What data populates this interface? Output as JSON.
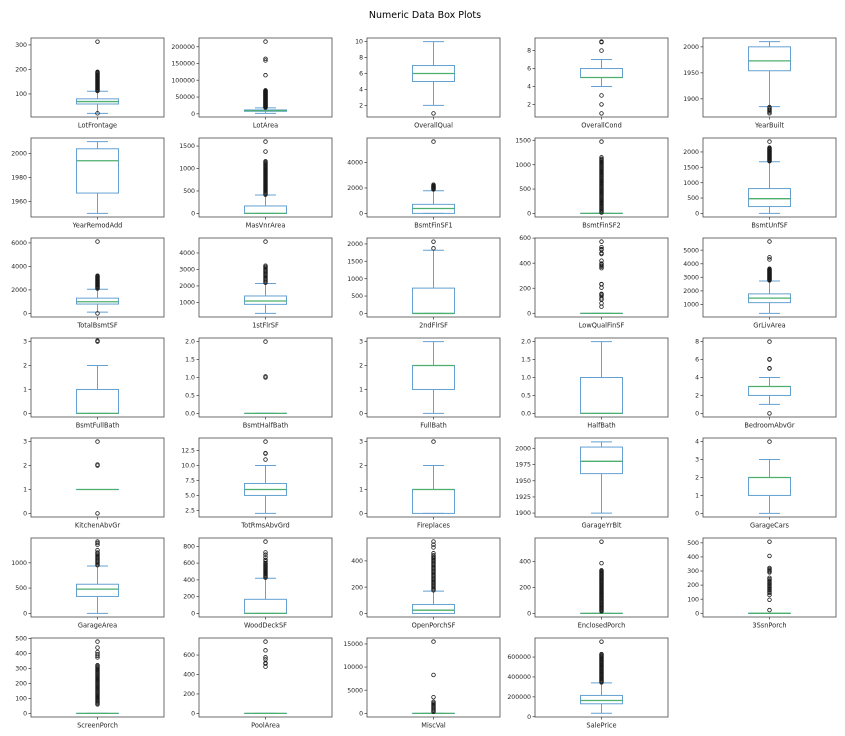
{
  "title": "Numeric Data Box Plots",
  "colors": {
    "background": "#ffffff",
    "box": "#64a1d2",
    "median": "#4caf6e",
    "outlier": "#1a1a1a",
    "spine": "#4a4a4a",
    "text": "#262626"
  },
  "chart_data": {
    "type": "box",
    "title": "Numeric Data Box Plots",
    "layout": {
      "rows": 7,
      "cols": 5,
      "legend": "none",
      "grid": false
    },
    "plots": [
      {
        "label": "LotFrontage",
        "ylim": [
          6,
          328
        ],
        "yticks": [
          "100",
          "200",
          "300"
        ],
        "box": {
          "q1": 59,
          "median": 69,
          "q3": 80,
          "whisker_low": 21,
          "whisker_high": 111
        },
        "outlier_clusters": [
          {
            "min": 112,
            "max": 190,
            "n": 26
          }
        ],
        "outliers": [
          313,
          21
        ]
      },
      {
        "label": "LotArea",
        "ylim": [
          -9500,
          226000
        ],
        "yticks": [
          "0",
          "50000",
          "100000",
          "150000",
          "200000"
        ],
        "box": {
          "q1": 7554,
          "median": 9478,
          "q3": 11602,
          "whisker_low": 1300,
          "whisker_high": 17700
        },
        "outlier_clusters": [
          {
            "min": 18500,
            "max": 70000,
            "n": 40
          }
        ],
        "outliers": [
          115000,
          159000,
          164000,
          215245
        ]
      },
      {
        "label": "OverallQual",
        "ylim": [
          0.55,
          10.45
        ],
        "yticks": [
          "2",
          "4",
          "6",
          "8",
          "10"
        ],
        "box": {
          "q1": 5,
          "median": 6,
          "q3": 7,
          "whisker_low": 2,
          "whisker_high": 10
        },
        "outlier_clusters": [],
        "outliers": [
          1
        ]
      },
      {
        "label": "OverallCond",
        "ylim": [
          0.6,
          9.4
        ],
        "yticks": [
          "2",
          "4",
          "6",
          "8"
        ],
        "box": {
          "q1": 5,
          "median": 5,
          "q3": 6,
          "whisker_low": 4,
          "whisker_high": 7
        },
        "outlier_clusters": [],
        "outliers": [
          9,
          8.93,
          8,
          3,
          2,
          1
        ]
      },
      {
        "label": "YearBuilt",
        "ylim": [
          1865,
          2017
        ],
        "yticks": [
          "1900",
          "1950",
          "2000"
        ],
        "box": {
          "q1": 1954,
          "median": 1973,
          "q3": 2000,
          "whisker_low": 1885,
          "whisker_high": 2010
        },
        "outlier_clusters": [
          {
            "min": 1872,
            "max": 1884,
            "n": 6
          }
        ],
        "outliers": []
      },
      {
        "label": "YearRemodAdd",
        "ylim": [
          1947,
          2013
        ],
        "yticks": [
          "1960",
          "1980",
          "2000"
        ],
        "box": {
          "q1": 1967,
          "median": 1994,
          "q3": 2004,
          "whisker_low": 1950,
          "whisker_high": 2010
        },
        "outlier_clusters": [],
        "outliers": []
      },
      {
        "label": "MasVnrArea",
        "ylim": [
          -80,
          1680
        ],
        "yticks": [
          "0",
          "500",
          "1000",
          "1500"
        ],
        "box": {
          "q1": 0,
          "median": 0,
          "q3": 166,
          "whisker_low": 0,
          "whisker_high": 410
        },
        "outlier_clusters": [
          {
            "min": 418,
            "max": 1160,
            "n": 34
          }
        ],
        "outliers": [
          1378,
          1600
        ]
      },
      {
        "label": "BsmtFinSF1",
        "ylim": [
          -282,
          5926
        ],
        "yticks": [
          "0",
          "2000",
          "4000"
        ],
        "box": {
          "q1": 0,
          "median": 384,
          "q3": 712,
          "whisker_low": 0,
          "whisker_high": 1780
        },
        "outlier_clusters": [
          {
            "min": 1880,
            "max": 2188,
            "n": 8
          }
        ],
        "outliers": [
          2260,
          5644
        ]
      },
      {
        "label": "BsmtFinSF2",
        "ylim": [
          -74,
          1548
        ],
        "yticks": [
          "0",
          "500",
          "1000",
          "1500"
        ],
        "box": {
          "q1": 0,
          "median": 0,
          "q3": 0,
          "whisker_low": 0,
          "whisker_high": 0
        },
        "outlier_clusters": [
          {
            "min": 18,
            "max": 1120,
            "n": 52
          }
        ],
        "outliers": [
          1150,
          1474
        ]
      },
      {
        "label": "BsmtUnfSF",
        "ylim": [
          -117,
          2453
        ],
        "yticks": [
          "0",
          "500",
          "1000",
          "1500",
          "2000"
        ],
        "box": {
          "q1": 223,
          "median": 478,
          "q3": 808,
          "whisker_low": 0,
          "whisker_high": 1680
        },
        "outlier_clusters": [
          {
            "min": 1700,
            "max": 2140,
            "n": 22
          }
        ],
        "outliers": [
          2336
        ]
      },
      {
        "label": "TotalBsmtSF",
        "ylim": [
          -305,
          6415
        ],
        "yticks": [
          "0",
          "2000",
          "4000",
          "6000"
        ],
        "box": {
          "q1": 796,
          "median": 992,
          "q3": 1298,
          "whisker_low": 105,
          "whisker_high": 2052
        },
        "outlier_clusters": [
          {
            "min": 2110,
            "max": 3206,
            "n": 18
          }
        ],
        "outliers": [
          6110,
          0
        ]
      },
      {
        "label": "1stFlrSF",
        "ylim": [
          115,
          4910
        ],
        "yticks": [
          "1000",
          "2000",
          "3000",
          "4000"
        ],
        "box": {
          "q1": 882,
          "median": 1087,
          "q3": 1391,
          "whisker_low": 334,
          "whisker_high": 2150
        },
        "outlier_clusters": [
          {
            "min": 2200,
            "max": 3228,
            "n": 16
          }
        ],
        "outliers": [
          4692
        ]
      },
      {
        "label": "2ndFlrSF",
        "ylim": [
          -103,
          2170
        ],
        "yticks": [
          "0",
          "500",
          "1000",
          "1500",
          "2000"
        ],
        "box": {
          "q1": 0,
          "median": 0,
          "q3": 728,
          "whisker_low": 0,
          "whisker_high": 1818
        },
        "outlier_clusters": [],
        "outliers": [
          1872,
          2065
        ]
      },
      {
        "label": "LowQualFinSF",
        "ylim": [
          -29,
          601
        ],
        "yticks": [
          "0",
          "200",
          "400",
          "600"
        ],
        "box": {
          "q1": 0,
          "median": 0,
          "q3": 0,
          "whisker_low": 0,
          "whisker_high": 0
        },
        "outlier_clusters": [],
        "outliers": [
          53,
          80,
          110,
          120,
          140,
          150,
          156,
          205,
          232,
          234,
          360,
          371,
          380,
          390,
          397,
          420,
          473,
          481,
          508,
          513,
          528,
          572
        ]
      },
      {
        "label": "GrLivArea",
        "ylim": [
          70,
          5900
        ],
        "yticks": [
          "1000",
          "2000",
          "3000",
          "4000",
          "5000"
        ],
        "box": {
          "q1": 1130,
          "median": 1464,
          "q3": 1777,
          "whisker_low": 334,
          "whisker_high": 2730
        },
        "outlier_clusters": [
          {
            "min": 2770,
            "max": 3630,
            "n": 22
          }
        ],
        "outliers": [
          4316,
          4476,
          5642
        ]
      },
      {
        "label": "BsmtFullBath",
        "ylim": [
          -0.15,
          3.15
        ],
        "yticks": [
          "0",
          "1",
          "2",
          "3"
        ],
        "box": {
          "q1": 0,
          "median": 0,
          "q3": 1,
          "whisker_low": 0,
          "whisker_high": 2
        },
        "outlier_clusters": [],
        "outliers": [
          3,
          3.04
        ]
      },
      {
        "label": "BsmtHalfBath",
        "ylim": [
          -0.1,
          2.1
        ],
        "yticks": [
          "0.0",
          "0.5",
          "1.0",
          "1.5",
          "2.0"
        ],
        "box": {
          "q1": 0,
          "median": 0,
          "q3": 0,
          "whisker_low": 0,
          "whisker_high": 0
        },
        "outlier_clusters": [],
        "outliers": [
          1,
          1.03,
          2
        ]
      },
      {
        "label": "FullBath",
        "ylim": [
          -0.15,
          3.15
        ],
        "yticks": [
          "0",
          "1",
          "2",
          "3"
        ],
        "box": {
          "q1": 1,
          "median": 2,
          "q3": 2,
          "whisker_low": 0,
          "whisker_high": 3
        },
        "outlier_clusters": [],
        "outliers": []
      },
      {
        "label": "HalfBath",
        "ylim": [
          -0.1,
          2.1
        ],
        "yticks": [
          "0.0",
          "0.5",
          "1.0",
          "1.5",
          "2.0"
        ],
        "box": {
          "q1": 0,
          "median": 0,
          "q3": 1,
          "whisker_low": 0,
          "whisker_high": 2
        },
        "outlier_clusters": [],
        "outliers": []
      },
      {
        "label": "BedroomAbvGr",
        "ylim": [
          -0.4,
          8.4
        ],
        "yticks": [
          "0",
          "2",
          "4",
          "6",
          "8"
        ],
        "box": {
          "q1": 2,
          "median": 3,
          "q3": 3,
          "whisker_low": 1,
          "whisker_high": 4
        },
        "outlier_clusters": [],
        "outliers": [
          0,
          5,
          5.04,
          6,
          6.04,
          8
        ]
      },
      {
        "label": "KitchenAbvGr",
        "ylim": [
          -0.15,
          3.15
        ],
        "yticks": [
          "0",
          "1",
          "2",
          "3"
        ],
        "box": {
          "q1": 1,
          "median": 1,
          "q3": 1,
          "whisker_low": 1,
          "whisker_high": 1
        },
        "outlier_clusters": [],
        "outliers": [
          0,
          2,
          2.04,
          3
        ]
      },
      {
        "label": "TotRmsAbvGrd",
        "ylim": [
          1.4,
          14.6
        ],
        "yticks": [
          "2.5",
          "5.0",
          "7.5",
          "10.0",
          "12.5"
        ],
        "box": {
          "q1": 5,
          "median": 6,
          "q3": 7,
          "whisker_low": 2,
          "whisker_high": 10
        },
        "outlier_clusters": [],
        "outliers": [
          11,
          12,
          12.07,
          14
        ]
      },
      {
        "label": "Fireplaces",
        "ylim": [
          -0.15,
          3.15
        ],
        "yticks": [
          "0",
          "1",
          "2",
          "3"
        ],
        "box": {
          "q1": 0,
          "median": 1,
          "q3": 1,
          "whisker_low": 0,
          "whisker_high": 2
        },
        "outlier_clusters": [],
        "outliers": [
          3
        ]
      },
      {
        "label": "GarageYrBlt",
        "ylim": [
          1894,
          2016
        ],
        "yticks": [
          "1900",
          "1925",
          "1950",
          "1975",
          "2000"
        ],
        "box": {
          "q1": 1961,
          "median": 1980,
          "q3": 2002,
          "whisker_low": 1900,
          "whisker_high": 2010
        },
        "outlier_clusters": [],
        "outliers": []
      },
      {
        "label": "GarageCars",
        "ylim": [
          -0.2,
          4.2
        ],
        "yticks": [
          "0",
          "1",
          "2",
          "3",
          "4"
        ],
        "box": {
          "q1": 1,
          "median": 2,
          "q3": 2,
          "whisker_low": 0,
          "whisker_high": 3
        },
        "outlier_clusters": [],
        "outliers": [
          4
        ]
      },
      {
        "label": "GarageArea",
        "ylim": [
          -71,
          1489
        ],
        "yticks": [
          "0",
          "500",
          "1000"
        ],
        "box": {
          "q1": 335,
          "median": 480,
          "q3": 576,
          "whisker_low": 0,
          "whisker_high": 936
        },
        "outlier_clusters": [
          {
            "min": 952,
            "max": 1200,
            "n": 12
          }
        ],
        "outliers": [
          1248,
          1356,
          1390,
          1418
        ]
      },
      {
        "label": "WoodDeckSF",
        "ylim": [
          -43,
          900
        ],
        "yticks": [
          "0",
          "200",
          "400",
          "600",
          "800"
        ],
        "box": {
          "q1": 0,
          "median": 0,
          "q3": 168,
          "whisker_low": 0,
          "whisker_high": 420
        },
        "outlier_clusters": [
          {
            "min": 426,
            "max": 600,
            "n": 15
          }
        ],
        "outliers": [
          621,
          640,
          670,
          700,
          728,
          857
        ]
      },
      {
        "label": "OpenPorchSF",
        "ylim": [
          -27,
          574
        ],
        "yticks": [
          "0",
          "200",
          "400"
        ],
        "box": {
          "q1": 0,
          "median": 25,
          "q3": 68,
          "whisker_low": 0,
          "whisker_high": 170
        },
        "outlier_clusters": [
          {
            "min": 176,
            "max": 432,
            "n": 30
          }
        ],
        "outliers": [
          442,
          458,
          502,
          523,
          547
        ]
      },
      {
        "label": "EnclosedPorch",
        "ylim": [
          -28,
          580
        ],
        "yticks": [
          "0",
          "200",
          "400"
        ],
        "box": {
          "q1": 0,
          "median": 0,
          "q3": 0,
          "whisker_low": 0,
          "whisker_high": 0
        },
        "outlier_clusters": [
          {
            "min": 16,
            "max": 331,
            "n": 48
          }
        ],
        "outliers": [
          386,
          552
        ]
      },
      {
        "label": "3SsnPorch",
        "ylim": [
          -26,
          534
        ],
        "yticks": [
          "0",
          "100",
          "200",
          "300",
          "400",
          "500"
        ],
        "box": {
          "q1": 0,
          "median": 0,
          "q3": 0,
          "whisker_low": 0,
          "whisker_high": 0
        },
        "outlier_clusters": [
          {
            "min": 144,
            "max": 252,
            "n": 12
          },
          {
            "min": 290,
            "max": 322,
            "n": 5
          }
        ],
        "outliers": [
          23,
          96,
          130,
          407,
          508
        ]
      },
      {
        "label": "ScreenPorch",
        "ylim": [
          -24,
          504
        ],
        "yticks": [
          "0",
          "100",
          "200",
          "300",
          "400",
          "500"
        ],
        "box": {
          "q1": 0,
          "median": 0,
          "q3": 0,
          "whisker_low": 0,
          "whisker_high": 0
        },
        "outlier_clusters": [
          {
            "min": 60,
            "max": 322,
            "n": 38
          }
        ],
        "outliers": [
          374,
          385,
          396,
          410,
          440,
          480
        ]
      },
      {
        "label": "PoolArea",
        "ylim": [
          -37,
          775
        ],
        "yticks": [
          "0",
          "200",
          "400",
          "600"
        ],
        "box": {
          "q1": 0,
          "median": 0,
          "q3": 0,
          "whisker_low": 0,
          "whisker_high": 0
        },
        "outlier_clusters": [],
        "outliers": [
          480,
          512,
          519,
          555,
          576,
          648,
          738
        ]
      },
      {
        "label": "MiscVal",
        "ylim": [
          -780,
          16280
        ],
        "yticks": [
          "0",
          "5000",
          "10000",
          "15000"
        ],
        "box": {
          "q1": 0,
          "median": 0,
          "q3": 0,
          "whisker_low": 0,
          "whisker_high": 0
        },
        "outlier_clusters": [
          {
            "min": 350,
            "max": 2500,
            "n": 10
          }
        ],
        "outliers": [
          3500,
          8300,
          15500
        ]
      },
      {
        "label": "SalePrice",
        "ylim": [
          -3000,
          792000
        ],
        "yticks": [
          "0",
          "200000",
          "400000",
          "600000"
        ],
        "box": {
          "q1": 130000,
          "median": 163000,
          "q3": 214000,
          "whisker_low": 35000,
          "whisker_high": 340000
        },
        "outlier_clusters": [
          {
            "min": 345000,
            "max": 630000,
            "n": 34
          }
        ],
        "outliers": [
          755000
        ]
      }
    ]
  }
}
